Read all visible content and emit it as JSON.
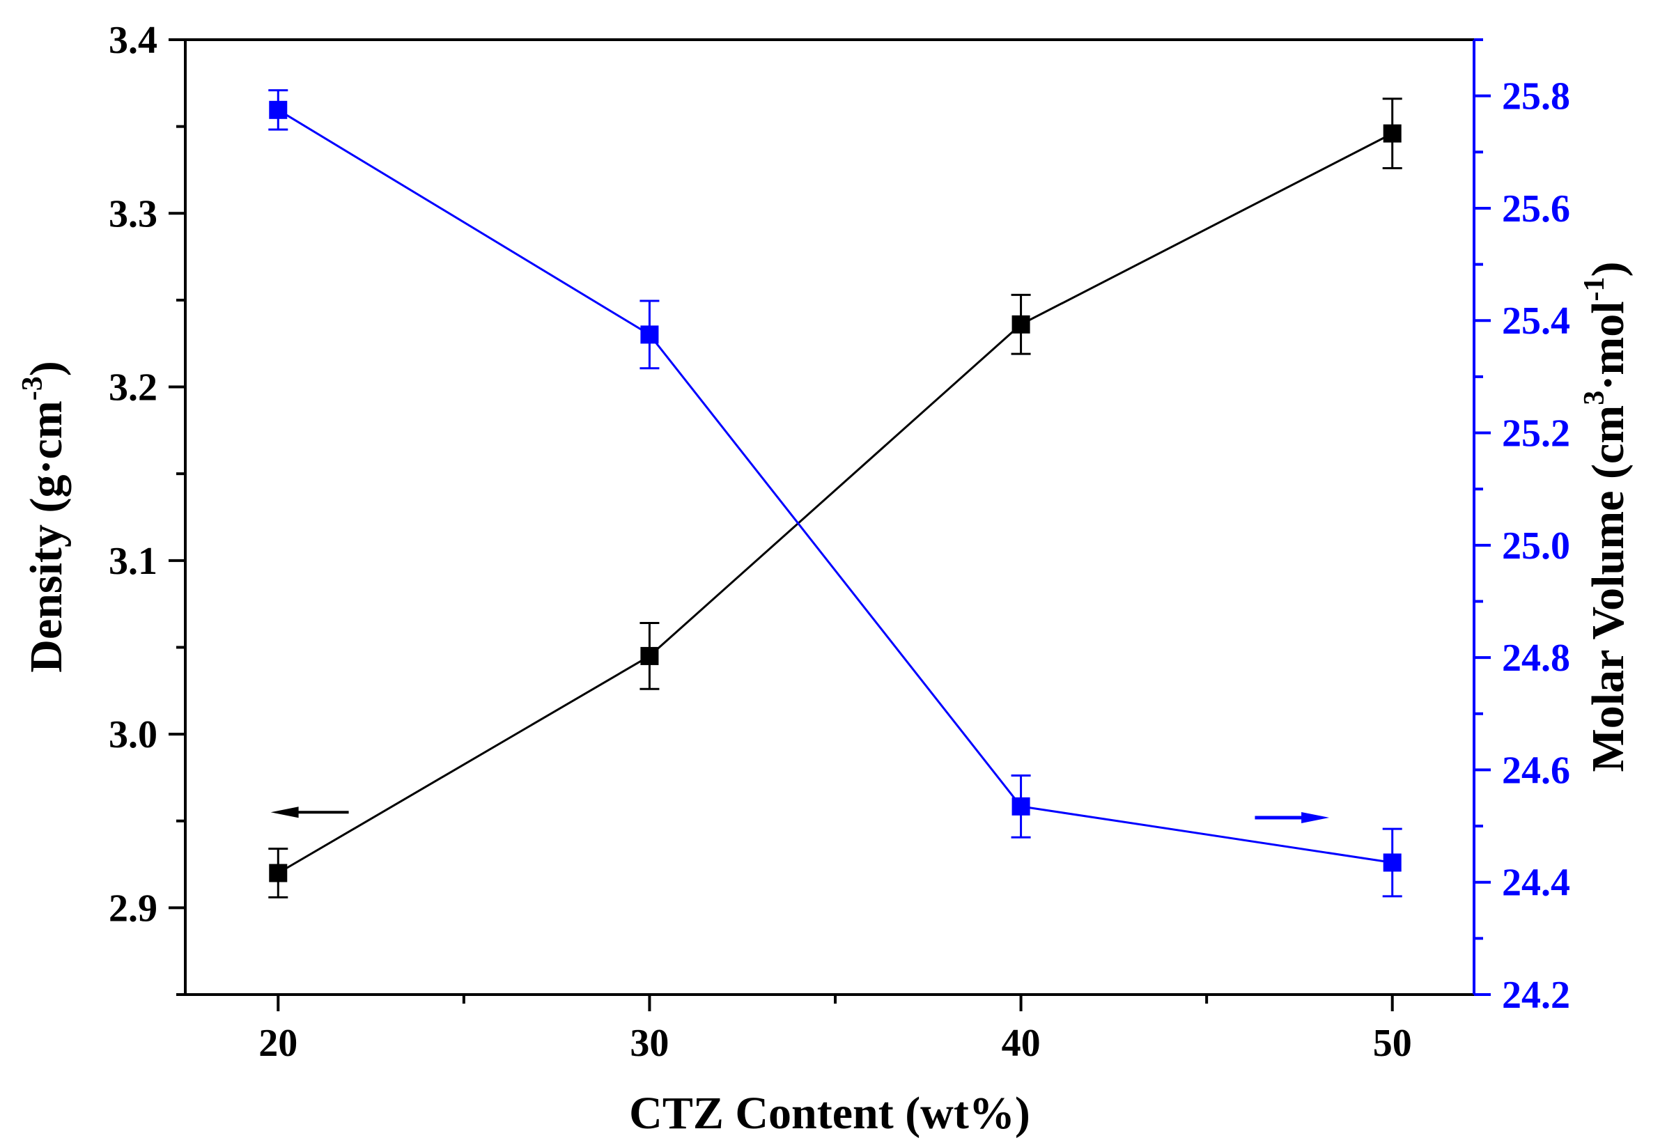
{
  "chart_data": {
    "type": "line",
    "title": "",
    "xlabel": "CTZ Content (wt%)",
    "ylabel_left": {
      "base": "Density (g·cm",
      "sup": "-3",
      "close": ")"
    },
    "ylabel_right": {
      "base": "Molar Volume (cm",
      "sup1": "3",
      "mid": "·mol",
      "sup2": "-1",
      "close": ")"
    },
    "x": [
      20,
      30,
      40,
      50
    ],
    "xlim": [
      17.5,
      52.2
    ],
    "x_ticks": [
      "20",
      "30",
      "40",
      "50"
    ],
    "ylim_left": [
      2.85,
      3.4
    ],
    "y_ticks_left": [
      "2.9",
      "3.0",
      "3.1",
      "3.2",
      "3.3",
      "3.4"
    ],
    "ylim_right": [
      24.2,
      25.9
    ],
    "y_ticks_right": [
      "24.2",
      "24.4",
      "24.6",
      "24.8",
      "25.0",
      "25.2",
      "25.4",
      "25.6",
      "25.8"
    ],
    "series": [
      {
        "name": "Density",
        "axis": "left",
        "color": "#000000",
        "marker": "square",
        "values": [
          2.92,
          3.045,
          3.236,
          3.346
        ],
        "errors": [
          0.014,
          0.019,
          0.017,
          0.02
        ]
      },
      {
        "name": "Molar Volume",
        "axis": "right",
        "color": "#0000ff",
        "marker": "square",
        "values": [
          25.775,
          25.375,
          24.535,
          24.435
        ],
        "errors": [
          0.035,
          0.06,
          0.055,
          0.06
        ]
      }
    ],
    "annotations": [
      {
        "type": "arrow",
        "direction": "left",
        "series": "Density",
        "near": "lower-left"
      },
      {
        "type": "arrow",
        "direction": "right",
        "series": "Molar Volume",
        "near": "lower-right"
      }
    ]
  }
}
